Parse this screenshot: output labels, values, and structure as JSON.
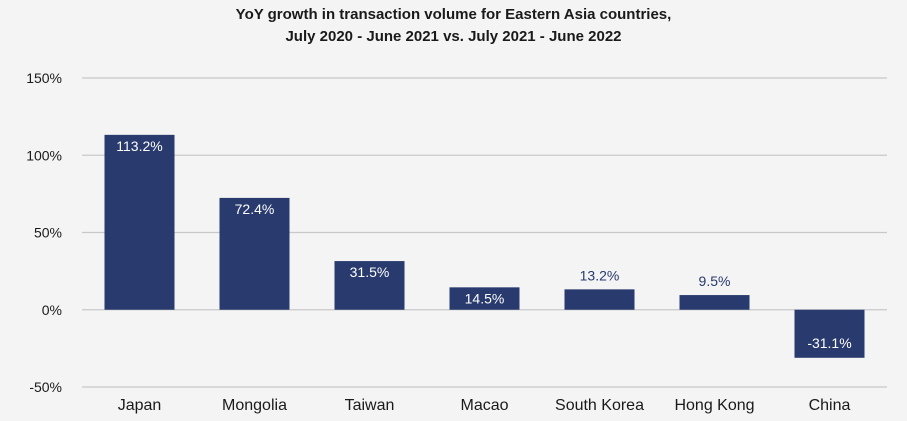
{
  "chart_data": {
    "type": "bar",
    "title_lines": [
      "YoY growth in transaction volume for Eastern Asia countries,",
      "July 2020 - June 2021 vs. July 2021 - June 2022"
    ],
    "categories": [
      "Japan",
      "Mongolia",
      "Taiwan",
      "Macao",
      "South Korea",
      "Hong Kong",
      "China"
    ],
    "values": [
      113.2,
      72.4,
      31.5,
      14.5,
      13.2,
      9.5,
      -31.1
    ],
    "data_labels": [
      "113.2%",
      "72.4%",
      "31.5%",
      "14.5%",
      "13.2%",
      "9.5%",
      "-31.1%"
    ],
    "y_ticks": [
      150,
      100,
      50,
      0,
      -50
    ],
    "y_tick_labels": [
      "150%",
      "100%",
      "50%",
      "0%",
      "-50%"
    ],
    "ylim": [
      -50,
      150
    ],
    "xlabel": "",
    "ylabel": "",
    "grid": true,
    "colors": {
      "bar": "#283a6e",
      "grid": "#c8c8c8",
      "label_inside": "#ffffff",
      "label_outside": "#283a6e",
      "axis_text": "#1a1a1a"
    }
  }
}
